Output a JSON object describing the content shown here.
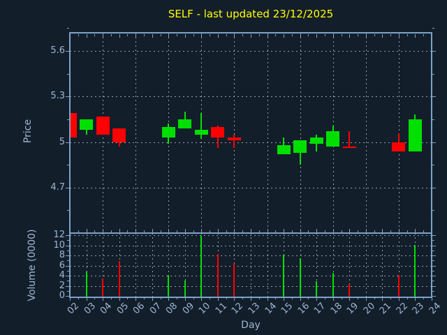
{
  "window": {
    "title": "SELF - last updated 23/12/2025"
  },
  "colors": {
    "background": "#131e2b",
    "title": "#ffff00",
    "axis": "#7da3c9",
    "label": "#9db7d3",
    "grid": "#989ea6",
    "up": "#00e000",
    "down": "#ff0000"
  },
  "chart_data": [
    {
      "type": "candlestick",
      "title": "SELF - last updated 23/12/2025",
      "xlabel": "Day",
      "ylabel": "Price",
      "ylim": [
        4.4,
        5.72
      ],
      "yticks": [
        4.7,
        5.0,
        5.3,
        5.6
      ],
      "ytick_labels": [
        "4.7",
        "5",
        "5.3",
        "5.6"
      ],
      "x_days_start": 2,
      "x_labels": [
        "02",
        "03",
        "04",
        "05",
        "06",
        "07",
        "08",
        "09",
        "10",
        "11",
        "12",
        "13",
        "14",
        "15",
        "16",
        "17",
        "18",
        "19",
        "20",
        "21",
        "22",
        "23",
        "24"
      ],
      "grid": true,
      "legend": "none",
      "candles": [
        {
          "day": 2,
          "open": 5.19,
          "high": 5.19,
          "low": 5.03,
          "close": 5.03
        },
        {
          "day": 3,
          "open": 5.08,
          "high": 5.15,
          "low": 5.05,
          "close": 5.15
        },
        {
          "day": 4,
          "open": 5.17,
          "high": 5.17,
          "low": 5.05,
          "close": 5.05
        },
        {
          "day": 5,
          "open": 5.09,
          "high": 5.09,
          "low": 4.97,
          "close": 5.0
        },
        {
          "day": 8,
          "open": 5.03,
          "high": 5.12,
          "low": 4.99,
          "close": 5.1
        },
        {
          "day": 9,
          "open": 5.09,
          "high": 5.2,
          "low": 5.09,
          "close": 5.15
        },
        {
          "day": 10,
          "open": 5.05,
          "high": 5.19,
          "low": 5.02,
          "close": 5.08
        },
        {
          "day": 11,
          "open": 5.1,
          "high": 5.11,
          "low": 4.96,
          "close": 5.03
        },
        {
          "day": 12,
          "open": 5.03,
          "high": 5.05,
          "low": 4.96,
          "close": 5.01
        },
        {
          "day": 15,
          "open": 4.92,
          "high": 5.03,
          "low": 4.92,
          "close": 4.98
        },
        {
          "day": 16,
          "open": 4.93,
          "high": 5.01,
          "low": 4.85,
          "close": 5.01
        },
        {
          "day": 17,
          "open": 4.99,
          "high": 5.05,
          "low": 4.94,
          "close": 5.03
        },
        {
          "day": 18,
          "open": 4.97,
          "high": 5.11,
          "low": 4.97,
          "close": 5.07
        },
        {
          "day": 19,
          "open": 4.97,
          "high": 5.07,
          "low": 4.96,
          "close": 4.96
        },
        {
          "day": 22,
          "open": 5.0,
          "high": 5.06,
          "low": 4.94,
          "close": 4.94
        },
        {
          "day": 23,
          "open": 4.94,
          "high": 5.18,
          "low": 4.94,
          "close": 5.15
        }
      ]
    },
    {
      "type": "bar",
      "ylabel": "Volume (0000)",
      "ylim": [
        0,
        12.4
      ],
      "yticks": [
        0,
        2,
        4,
        6,
        8,
        10,
        12
      ],
      "bars": [
        {
          "day": 3,
          "value": 4.8,
          "dir": "up"
        },
        {
          "day": 4,
          "value": 3.4,
          "dir": "down"
        },
        {
          "day": 5,
          "value": 6.9,
          "dir": "down"
        },
        {
          "day": 8,
          "value": 4.2,
          "dir": "up"
        },
        {
          "day": 9,
          "value": 3.0,
          "dir": "up"
        },
        {
          "day": 10,
          "value": 11.8,
          "dir": "up"
        },
        {
          "day": 11,
          "value": 8.3,
          "dir": "down"
        },
        {
          "day": 12,
          "value": 6.4,
          "dir": "down"
        },
        {
          "day": 15,
          "value": 8.1,
          "dir": "up"
        },
        {
          "day": 16,
          "value": 7.4,
          "dir": "up"
        },
        {
          "day": 17,
          "value": 2.9,
          "dir": "up"
        },
        {
          "day": 18,
          "value": 4.5,
          "dir": "up"
        },
        {
          "day": 19,
          "value": 2.4,
          "dir": "down"
        },
        {
          "day": 22,
          "value": 4.1,
          "dir": "down"
        },
        {
          "day": 23,
          "value": 10.1,
          "dir": "up"
        }
      ]
    }
  ]
}
